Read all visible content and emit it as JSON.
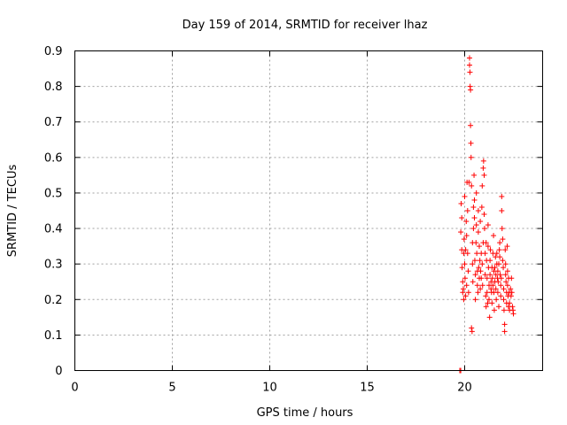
{
  "chart_data": {
    "type": "scatter",
    "title": "Day 159 of 2014, SRMTID for receiver lhaz",
    "xlabel": "GPS time / hours",
    "ylabel": "SRMTID / TECUs",
    "xlim": [
      0,
      24
    ],
    "ylim": [
      0,
      0.9
    ],
    "xticks": [
      "0",
      "5",
      "10",
      "15",
      "20"
    ],
    "yticks": [
      "0",
      "0.1",
      "0.2",
      "0.3",
      "0.4",
      "0.5",
      "0.6",
      "0.7",
      "0.8",
      "0.9"
    ],
    "grid": true,
    "marker": "+",
    "color": "#ff0000",
    "series": [
      {
        "name": "SRMTID",
        "points": [
          [
            19.75,
            0.0
          ],
          [
            19.8,
            0.0
          ],
          [
            19.8,
            0.39
          ],
          [
            19.82,
            0.47
          ],
          [
            19.85,
            0.43
          ],
          [
            19.85,
            0.34
          ],
          [
            19.87,
            0.29
          ],
          [
            19.9,
            0.25
          ],
          [
            19.9,
            0.22
          ],
          [
            19.93,
            0.23
          ],
          [
            19.95,
            0.2
          ],
          [
            19.95,
            0.33
          ],
          [
            19.97,
            0.37
          ],
          [
            20.0,
            0.49
          ],
          [
            20.0,
            0.3
          ],
          [
            20.02,
            0.26
          ],
          [
            20.05,
            0.21
          ],
          [
            20.05,
            0.34
          ],
          [
            20.08,
            0.42
          ],
          [
            20.1,
            0.38
          ],
          [
            20.1,
            0.24
          ],
          [
            20.12,
            0.53
          ],
          [
            20.15,
            0.45
          ],
          [
            20.15,
            0.33
          ],
          [
            20.18,
            0.28
          ],
          [
            20.2,
            0.22
          ],
          [
            20.22,
            0.53
          ],
          [
            20.25,
            0.88
          ],
          [
            20.25,
            0.86
          ],
          [
            20.27,
            0.84
          ],
          [
            20.28,
            0.8
          ],
          [
            20.3,
            0.79
          ],
          [
            20.3,
            0.69
          ],
          [
            20.32,
            0.64
          ],
          [
            20.33,
            0.6
          ],
          [
            20.35,
            0.52
          ],
          [
            20.35,
            0.12
          ],
          [
            20.38,
            0.11
          ],
          [
            20.4,
            0.36
          ],
          [
            20.4,
            0.3
          ],
          [
            20.42,
            0.25
          ],
          [
            20.45,
            0.4
          ],
          [
            20.45,
            0.46
          ],
          [
            20.48,
            0.55
          ],
          [
            20.5,
            0.48
          ],
          [
            20.5,
            0.43
          ],
          [
            20.52,
            0.31
          ],
          [
            20.55,
            0.27
          ],
          [
            20.55,
            0.2
          ],
          [
            20.58,
            0.36
          ],
          [
            20.6,
            0.41
          ],
          [
            20.6,
            0.5
          ],
          [
            20.62,
            0.33
          ],
          [
            20.65,
            0.28
          ],
          [
            20.65,
            0.24
          ],
          [
            20.68,
            0.22
          ],
          [
            20.7,
            0.39
          ],
          [
            20.7,
            0.45
          ],
          [
            20.72,
            0.29
          ],
          [
            20.75,
            0.26
          ],
          [
            20.75,
            0.35
          ],
          [
            20.78,
            0.31
          ],
          [
            20.8,
            0.23
          ],
          [
            20.8,
            0.42
          ],
          [
            20.82,
            0.28
          ],
          [
            20.85,
            0.33
          ],
          [
            20.85,
            0.26
          ],
          [
            20.88,
            0.46
          ],
          [
            20.9,
            0.3
          ],
          [
            20.9,
            0.52
          ],
          [
            20.92,
            0.24
          ],
          [
            20.95,
            0.36
          ],
          [
            20.95,
            0.57
          ],
          [
            20.97,
            0.59
          ],
          [
            21.0,
            0.55
          ],
          [
            21.0,
            0.44
          ],
          [
            21.02,
            0.4
          ],
          [
            21.05,
            0.33
          ],
          [
            21.05,
            0.27
          ],
          [
            21.08,
            0.21
          ],
          [
            21.1,
            0.18
          ],
          [
            21.1,
            0.36
          ],
          [
            21.12,
            0.31
          ],
          [
            21.15,
            0.26
          ],
          [
            21.15,
            0.22
          ],
          [
            21.18,
            0.19
          ],
          [
            21.2,
            0.41
          ],
          [
            21.2,
            0.35
          ],
          [
            21.22,
            0.29
          ],
          [
            21.25,
            0.24
          ],
          [
            21.25,
            0.2
          ],
          [
            21.28,
            0.15
          ],
          [
            21.3,
            0.27
          ],
          [
            21.3,
            0.31
          ],
          [
            21.32,
            0.34
          ],
          [
            21.35,
            0.25
          ],
          [
            21.35,
            0.23
          ],
          [
            21.38,
            0.22
          ],
          [
            21.4,
            0.29
          ],
          [
            21.4,
            0.19
          ],
          [
            21.42,
            0.26
          ],
          [
            21.45,
            0.24
          ],
          [
            21.45,
            0.33
          ],
          [
            21.48,
            0.38
          ],
          [
            21.5,
            0.28
          ],
          [
            21.5,
            0.22
          ],
          [
            21.52,
            0.17
          ],
          [
            21.55,
            0.25
          ],
          [
            21.55,
            0.29
          ],
          [
            21.58,
            0.32
          ],
          [
            21.6,
            0.27
          ],
          [
            21.6,
            0.23
          ],
          [
            21.62,
            0.2
          ],
          [
            21.65,
            0.33
          ],
          [
            21.65,
            0.3
          ],
          [
            21.68,
            0.26
          ],
          [
            21.7,
            0.22
          ],
          [
            21.7,
            0.28
          ],
          [
            21.72,
            0.25
          ],
          [
            21.75,
            0.18
          ],
          [
            21.75,
            0.3
          ],
          [
            21.78,
            0.34
          ],
          [
            21.8,
            0.36
          ],
          [
            21.8,
            0.32
          ],
          [
            21.82,
            0.27
          ],
          [
            21.85,
            0.24
          ],
          [
            21.85,
            0.21
          ],
          [
            21.88,
            0.26
          ],
          [
            21.9,
            0.49
          ],
          [
            21.9,
            0.45
          ],
          [
            21.92,
            0.4
          ],
          [
            21.95,
            0.37
          ],
          [
            21.95,
            0.31
          ],
          [
            21.98,
            0.29
          ],
          [
            22.0,
            0.23
          ],
          [
            22.0,
            0.2
          ],
          [
            22.02,
            0.17
          ],
          [
            22.05,
            0.13
          ],
          [
            22.05,
            0.11
          ],
          [
            22.08,
            0.34
          ],
          [
            22.1,
            0.3
          ],
          [
            22.1,
            0.27
          ],
          [
            22.12,
            0.25
          ],
          [
            22.15,
            0.22
          ],
          [
            22.15,
            0.19
          ],
          [
            22.18,
            0.35
          ],
          [
            22.2,
            0.28
          ],
          [
            22.2,
            0.24
          ],
          [
            22.22,
            0.21
          ],
          [
            22.25,
            0.18
          ],
          [
            22.25,
            0.26
          ],
          [
            22.28,
            0.22
          ],
          [
            22.3,
            0.19
          ],
          [
            22.3,
            0.17
          ],
          [
            22.35,
            0.23
          ],
          [
            22.38,
            0.21
          ],
          [
            22.4,
            0.26
          ],
          [
            22.42,
            0.22
          ],
          [
            22.45,
            0.18
          ],
          [
            22.48,
            0.17
          ],
          [
            22.5,
            0.16
          ]
        ]
      }
    ]
  }
}
